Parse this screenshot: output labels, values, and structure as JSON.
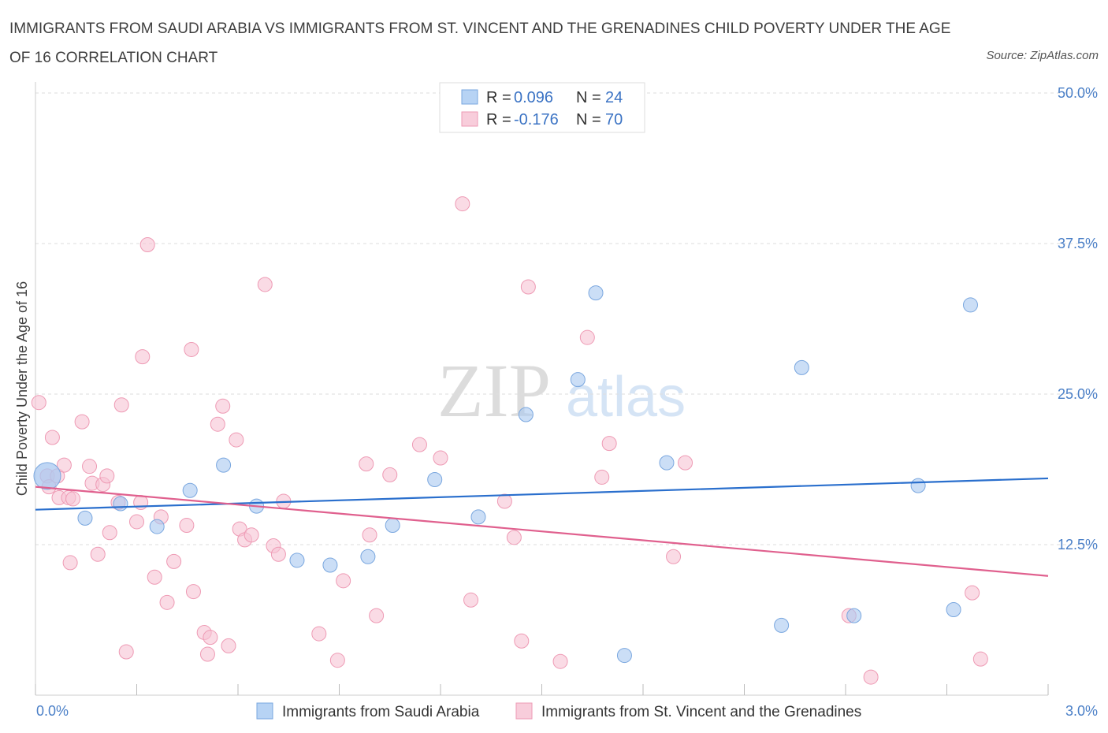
{
  "title": "IMMIGRANTS FROM SAUDI ARABIA VS IMMIGRANTS FROM ST. VINCENT AND THE GRENADINES CHILD POVERTY UNDER THE AGE OF 16 CORRELATION CHART",
  "source": "Source: ZipAtlas.com",
  "watermark": {
    "zip": "ZIP",
    "atlas": "atlas"
  },
  "chart_data": {
    "type": "scatter",
    "title": "IMMIGRANTS FROM SAUDI ARABIA VS IMMIGRANTS FROM ST. VINCENT AND THE GRENADINES CHILD POVERTY UNDER THE AGE OF 16 CORRELATION CHART",
    "xlabel": "",
    "ylabel": "Child Poverty Under the Age of 16",
    "xlim": [
      0,
      3.0
    ],
    "ylim": [
      0,
      50
    ],
    "x_tick_labels": [
      "0.0%",
      "3.0%"
    ],
    "y_ticks": [
      12.5,
      25.0,
      37.5,
      50.0
    ],
    "y_tick_labels": [
      "12.5%",
      "25.0%",
      "37.5%",
      "50.0%"
    ],
    "grid": "horizontal dashed",
    "legend_placement": "top-center",
    "series": [
      {
        "name": "Immigrants from Saudi Arabia",
        "color": "#a9c8f0",
        "stroke": "#7aa7df",
        "line_color": "#2a6fcd",
        "R": "0.096",
        "N": "24",
        "trend": [
          [
            0,
            15.4
          ],
          [
            3.0,
            18.0
          ]
        ],
        "points": [
          [
            0.035,
            18.2
          ],
          [
            0.147,
            14.7
          ],
          [
            0.252,
            15.9
          ],
          [
            0.36,
            14.0
          ],
          [
            0.458,
            17.0
          ],
          [
            0.557,
            19.1
          ],
          [
            0.655,
            15.7
          ],
          [
            0.775,
            11.2
          ],
          [
            0.873,
            10.8
          ],
          [
            0.985,
            11.5
          ],
          [
            1.058,
            14.1
          ],
          [
            1.183,
            17.9
          ],
          [
            1.312,
            14.8
          ],
          [
            1.453,
            23.3
          ],
          [
            1.607,
            26.2
          ],
          [
            1.66,
            33.4
          ],
          [
            1.745,
            3.3
          ],
          [
            1.87,
            19.3
          ],
          [
            2.21,
            5.8
          ],
          [
            2.27,
            27.2
          ],
          [
            2.425,
            6.6
          ],
          [
            2.615,
            17.4
          ],
          [
            2.72,
            7.1
          ],
          [
            2.77,
            32.4
          ]
        ]
      },
      {
        "name": "Immigrants from St. Vincent and the Grenadines",
        "color": "#f6c3d3",
        "stroke": "#ee9ab4",
        "line_color": "#e0608e",
        "R": "-0.176",
        "N": "70",
        "trend": [
          [
            0,
            17.3
          ],
          [
            3.0,
            9.9
          ]
        ],
        "points": [
          [
            0.01,
            24.3
          ],
          [
            0.035,
            18.2
          ],
          [
            0.04,
            17.3
          ],
          [
            0.05,
            21.4
          ],
          [
            0.065,
            18.2
          ],
          [
            0.07,
            16.4
          ],
          [
            0.085,
            19.1
          ],
          [
            0.098,
            16.4
          ],
          [
            0.103,
            11.0
          ],
          [
            0.111,
            16.3
          ],
          [
            0.138,
            22.7
          ],
          [
            0.16,
            19.0
          ],
          [
            0.168,
            17.6
          ],
          [
            0.185,
            11.7
          ],
          [
            0.2,
            17.5
          ],
          [
            0.212,
            18.2
          ],
          [
            0.22,
            13.5
          ],
          [
            0.245,
            16.0
          ],
          [
            0.255,
            24.1
          ],
          [
            0.269,
            3.6
          ],
          [
            0.3,
            14.4
          ],
          [
            0.312,
            16.0
          ],
          [
            0.317,
            28.1
          ],
          [
            0.332,
            37.4
          ],
          [
            0.353,
            9.8
          ],
          [
            0.372,
            14.8
          ],
          [
            0.39,
            7.7
          ],
          [
            0.41,
            11.1
          ],
          [
            0.448,
            14.1
          ],
          [
            0.462,
            28.7
          ],
          [
            0.468,
            8.6
          ],
          [
            0.5,
            5.2
          ],
          [
            0.51,
            3.4
          ],
          [
            0.518,
            4.8
          ],
          [
            0.54,
            22.5
          ],
          [
            0.555,
            24.0
          ],
          [
            0.572,
            4.1
          ],
          [
            0.595,
            21.2
          ],
          [
            0.605,
            13.8
          ],
          [
            0.62,
            12.9
          ],
          [
            0.64,
            13.3
          ],
          [
            0.68,
            34.1
          ],
          [
            0.705,
            12.4
          ],
          [
            0.72,
            11.7
          ],
          [
            0.735,
            16.1
          ],
          [
            0.84,
            5.1
          ],
          [
            0.895,
            2.9
          ],
          [
            0.912,
            9.5
          ],
          [
            0.98,
            19.2
          ],
          [
            0.99,
            13.3
          ],
          [
            1.01,
            6.6
          ],
          [
            1.05,
            18.3
          ],
          [
            1.138,
            20.8
          ],
          [
            1.2,
            19.7
          ],
          [
            1.265,
            40.8
          ],
          [
            1.29,
            7.9
          ],
          [
            1.39,
            16.1
          ],
          [
            1.418,
            13.1
          ],
          [
            1.44,
            4.5
          ],
          [
            1.46,
            33.9
          ],
          [
            1.555,
            2.8
          ],
          [
            1.635,
            29.7
          ],
          [
            1.678,
            18.1
          ],
          [
            1.7,
            20.9
          ],
          [
            1.89,
            11.5
          ],
          [
            1.925,
            19.3
          ],
          [
            2.41,
            6.6
          ],
          [
            2.475,
            1.5
          ],
          [
            2.775,
            8.5
          ],
          [
            2.8,
            3.0
          ]
        ]
      }
    ]
  }
}
